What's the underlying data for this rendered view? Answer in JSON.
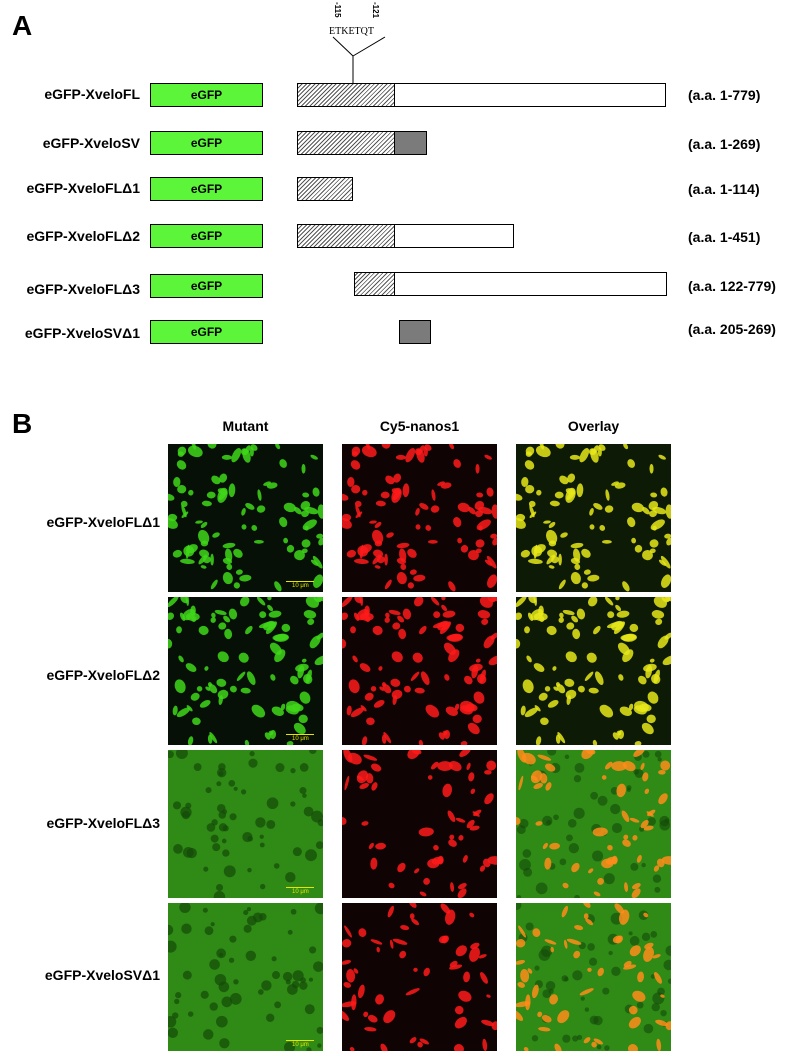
{
  "panel_a": {
    "letter": "A",
    "motif": {
      "sequence": "ETKETQT",
      "start": "-115",
      "end": "-121"
    },
    "egfp_label": "eGFP",
    "constructs": [
      {
        "name": "eGFP-XveloFL",
        "range": "(a.a. 1-779)"
      },
      {
        "name": "eGFP-XveloSV",
        "range": "(a.a. 1-269)"
      },
      {
        "name": "eGFP-XveloFLΔ1",
        "range": "(a.a. 1-114)"
      },
      {
        "name": "eGFP-XveloFLΔ2",
        "range": "(a.a. 1-451)"
      },
      {
        "name": "eGFP-XveloFLΔ3",
        "range": "(a.a. 122-779)"
      },
      {
        "name": "eGFP-XveloSVΔ1",
        "range": "(a.a. 205-269)"
      }
    ]
  },
  "panel_b": {
    "letter": "B",
    "columns": [
      "Mutant",
      "Cy5-nanos1",
      "Overlay"
    ],
    "rows": [
      {
        "name": "eGFP-XveloFLΔ1",
        "scale": "10 μm"
      },
      {
        "name": "eGFP-XveloFLΔ2",
        "scale": "10 μm"
      },
      {
        "name": "eGFP-XveloFLΔ3",
        "scale": "10 μm"
      },
      {
        "name": "eGFP-XveloSVΔ1",
        "scale": "10 μm"
      }
    ]
  },
  "colors": {
    "egfp_green": "#5cf53a",
    "sv_gray": "#7b7b7b",
    "micro_green": "#3fd61a",
    "micro_red": "#ff1a1a",
    "overlay_yellow": "#e8e81a",
    "overlay_orange": "#ff8c1a"
  }
}
